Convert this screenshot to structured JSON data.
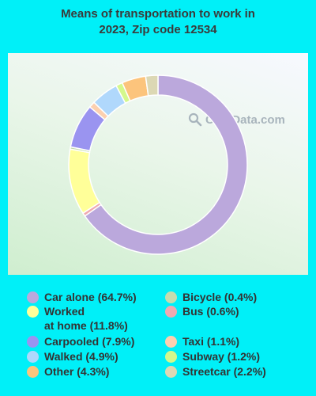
{
  "chart_data": {
    "type": "pie",
    "title": "Means of transportation to work in\n2023, Zip code 12534",
    "watermark": "City-Data.com",
    "slices": [
      {
        "label": "Car alone (64.7%)",
        "value": 64.7,
        "color": "#bba8dc"
      },
      {
        "label": "Bus (0.6%)",
        "value": 0.6,
        "color": "#f0aab0"
      },
      {
        "label": "Worked\nat home (11.8%)",
        "value": 11.8,
        "color": "#ffff99"
      },
      {
        "label": "Bicycle (0.4%)",
        "value": 0.4,
        "color": "#c6dcae"
      },
      {
        "label": "Carpooled (7.9%)",
        "value": 7.9,
        "color": "#9a94f0"
      },
      {
        "label": "Taxi (1.1%)",
        "value": 1.1,
        "color": "#fcd0b0"
      },
      {
        "label": "Walked (4.9%)",
        "value": 4.9,
        "color": "#b0d8fc"
      },
      {
        "label": "Subway (1.2%)",
        "value": 1.2,
        "color": "#d4f88c"
      },
      {
        "label": "Other (4.3%)",
        "value": 4.3,
        "color": "#fcc47c"
      },
      {
        "label": "Streetcar (2.2%)",
        "value": 2.2,
        "color": "#dcd8b4"
      }
    ],
    "legend": {
      "left": [
        "Car alone (64.7%)",
        "Worked\nat home (11.8%)",
        "Carpooled (7.9%)",
        "Walked (4.9%)",
        "Other (4.3%)"
      ],
      "right": [
        "Bicycle (0.4%)",
        "Bus (0.6%)",
        "Taxi (1.1%)",
        "Subway (1.2%)",
        "Streetcar (2.2%)"
      ]
    }
  }
}
